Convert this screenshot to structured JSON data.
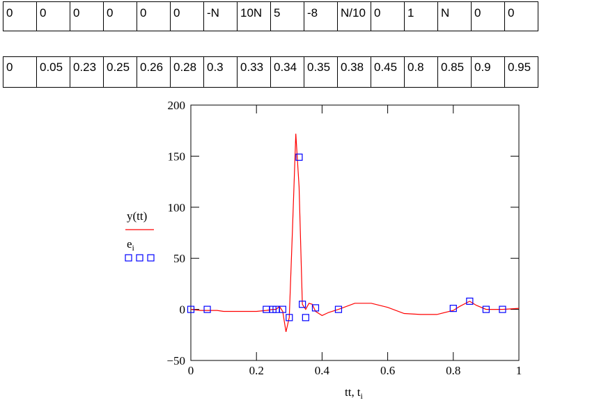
{
  "table_e": [
    "0",
    "0",
    "0",
    "0",
    "0",
    "0",
    "-N",
    "10N",
    "5",
    "-8",
    "N/10",
    "0",
    "1",
    "N",
    "0",
    "0"
  ],
  "table_t": [
    "0",
    "0.05",
    "0.23",
    "0.25",
    "0.26",
    "0.28",
    "0.3",
    "0.33",
    "0.34",
    "0.35",
    "0.38",
    "0.45",
    "0.8",
    "0.85",
    "0.9",
    "0.95"
  ],
  "colors": {
    "line": "#ff0000",
    "points": "#0000ff",
    "axis": "#000000"
  },
  "chart_data": {
    "type": "line",
    "xlim": [
      0,
      1
    ],
    "ylim": [
      -50,
      200
    ],
    "x_ticks": [
      "0",
      "0.2",
      "0.4",
      "0.6",
      "0.8",
      "1"
    ],
    "y_ticks": [
      "-50",
      "0",
      "50",
      "100",
      "150",
      "200"
    ],
    "xlabel": {
      "main1": "tt",
      "sep": ",",
      "main2": "t",
      "sub2": "i"
    },
    "legend": {
      "line_label": "y(tt)",
      "points_label_main": "e",
      "points_label_sub": "i"
    },
    "series": [
      {
        "name": "y(tt)",
        "style": "line",
        "x": [
          0,
          0.03,
          0.05,
          0.08,
          0.1,
          0.15,
          0.2,
          0.23,
          0.25,
          0.26,
          0.27,
          0.28,
          0.29,
          0.3,
          0.31,
          0.32,
          0.33,
          0.34,
          0.35,
          0.36,
          0.37,
          0.38,
          0.4,
          0.42,
          0.45,
          0.5,
          0.55,
          0.6,
          0.65,
          0.7,
          0.75,
          0.8,
          0.82,
          0.85,
          0.87,
          0.9,
          0.95,
          1.0
        ],
        "y": [
          0,
          -1,
          -1,
          -1,
          -2,
          -2,
          -2,
          -1,
          0,
          0,
          3,
          -2,
          -22,
          -8,
          80,
          172,
          120,
          5,
          0,
          6,
          5,
          -2,
          -6,
          -3,
          0,
          6,
          6,
          2,
          -4,
          -5,
          -5,
          -1,
          3,
          8,
          4,
          0,
          0,
          1
        ]
      },
      {
        "name": "e_i",
        "style": "points",
        "x": [
          0,
          0.05,
          0.23,
          0.25,
          0.26,
          0.28,
          0.3,
          0.33,
          0.34,
          0.35,
          0.38,
          0.45,
          0.8,
          0.85,
          0.9,
          0.95
        ],
        "y": [
          0,
          0,
          0,
          0,
          0,
          0,
          -8,
          149,
          5,
          -8,
          1.5,
          0,
          1,
          8,
          0,
          0
        ]
      }
    ]
  }
}
